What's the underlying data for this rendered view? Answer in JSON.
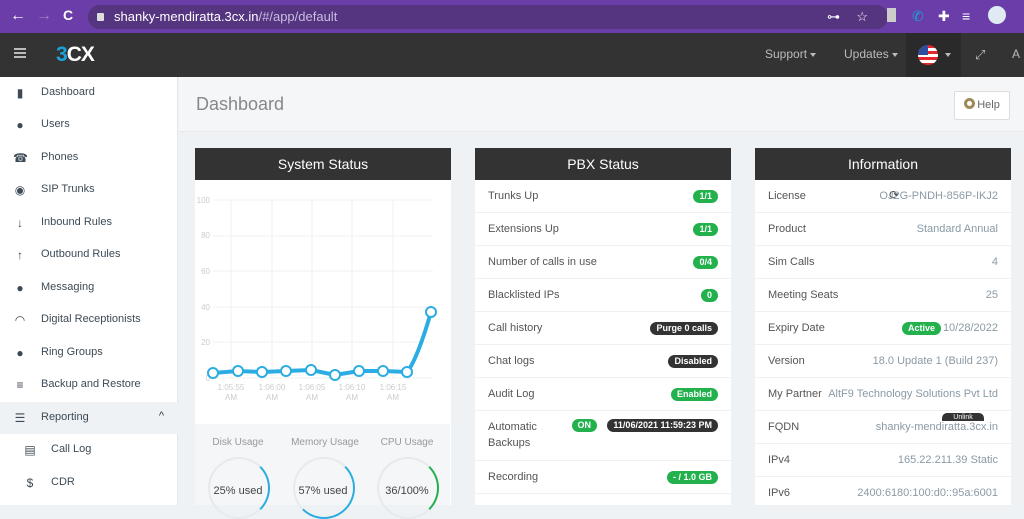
{
  "browser": {
    "url_host": "shanky-mendiratta.3cx.in",
    "url_path": "/#/app/default",
    "back": "←",
    "forward": "→",
    "reload": "C",
    "key": "⊶",
    "star": "☆"
  },
  "topbar": {
    "logo_num": "3",
    "logo_text": "CX",
    "support": "Support",
    "updates": "Updates",
    "user": "A"
  },
  "sidebar": {
    "items": [
      {
        "label": "Dashboard",
        "icon": "▮"
      },
      {
        "label": "Users",
        "icon": "●"
      },
      {
        "label": "Phones",
        "icon": "☎"
      },
      {
        "label": "SIP Trunks",
        "icon": "◉"
      },
      {
        "label": "Inbound Rules",
        "icon": "↓"
      },
      {
        "label": "Outbound Rules",
        "icon": "↑"
      },
      {
        "label": "Messaging",
        "icon": "●"
      },
      {
        "label": "Digital Receptionists",
        "icon": "◠"
      },
      {
        "label": "Ring Groups",
        "icon": "●"
      },
      {
        "label": "Backup and Restore",
        "icon": "≡"
      },
      {
        "label": "Reporting",
        "icon": "☰",
        "chevron": "^"
      },
      {
        "label": "Call Log",
        "icon": "▤"
      },
      {
        "label": "CDR",
        "icon": "$"
      }
    ]
  },
  "page": {
    "title": "Dashboard",
    "help": "Help"
  },
  "system_status": {
    "title": "System Status",
    "disk_label": "Disk Usage",
    "disk_value": "25% used",
    "memory_label": "Memory Usage",
    "memory_value": "57% used",
    "cpu_label": "CPU Usage",
    "cpu_value": "36/100%"
  },
  "chart_data": {
    "type": "line",
    "title": "System Status",
    "y_ticks": [
      "100",
      "80",
      "60",
      "40",
      "20",
      "0"
    ],
    "ylim": [
      0,
      100
    ],
    "x_ticks": [
      "1:05:55 AM",
      "1:06:00 AM",
      "1:06:05 AM",
      "1:06:10 AM",
      "1:06:15 AM"
    ],
    "series": [
      {
        "name": "CPU",
        "values": [
          3,
          4,
          3,
          4,
          4,
          2,
          4,
          4,
          3,
          37
        ]
      }
    ]
  },
  "pbx": {
    "title": "PBX Status",
    "rows": [
      {
        "label": "Trunks Up",
        "badge": "1/1"
      },
      {
        "label": "Extensions Up",
        "badge": "1/1"
      },
      {
        "label": "Number of calls in use",
        "badge": "0/4"
      },
      {
        "label": "Blacklisted IPs",
        "badge": "0"
      },
      {
        "label": "Call history",
        "badge": "Purge 0 calls"
      },
      {
        "label": "Chat logs",
        "badge": "Disabled"
      },
      {
        "label": "Audit Log",
        "badge": "Enabled"
      },
      {
        "label": "Automatic Backups",
        "badge_on": "ON",
        "badge_date": "11/06/2021 11:59:23 PM"
      },
      {
        "label": "Recording",
        "badge": "- / 1.0 GB"
      }
    ]
  },
  "info": {
    "title": "Information",
    "rows": [
      {
        "label": "License",
        "value": "OJ2G-PNDH-856P-IKJ2"
      },
      {
        "label": "Product",
        "value": "Standard Annual"
      },
      {
        "label": "Sim Calls",
        "value": "4"
      },
      {
        "label": "Meeting Seats",
        "value": "25"
      },
      {
        "label": "Expiry Date",
        "badge": "Active",
        "value": "10/28/2022"
      },
      {
        "label": "Version",
        "value": "18.0 Update 1 (Build 237)"
      },
      {
        "label": "My Partner",
        "value": "AltF9 Technology Solutions Pvt Ltd",
        "action": "Unlink"
      },
      {
        "label": "FQDN",
        "value": "shanky-mendiratta.3cx.in"
      },
      {
        "label": "IPv4",
        "value": "165.22.211.39 Static"
      },
      {
        "label": "IPv6",
        "value": "2400:6180:100:d0::95a:6001"
      }
    ]
  }
}
